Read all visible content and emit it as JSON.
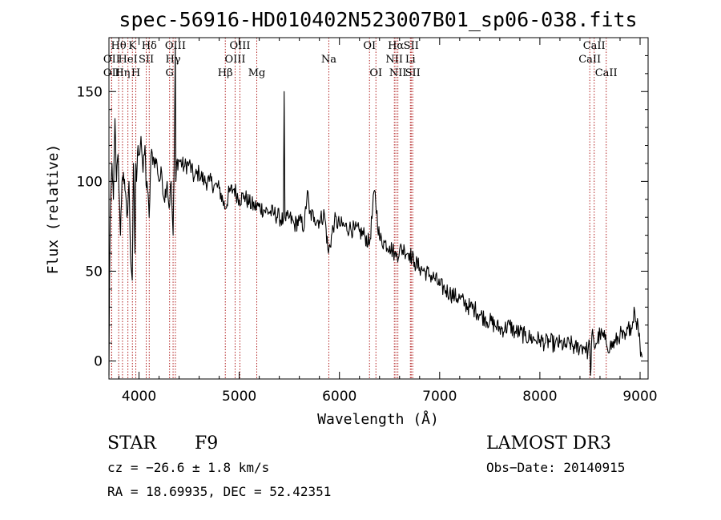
{
  "chart_data": {
    "type": "line",
    "title": "spec-56916-HD010402N523007B01_sp06-038.fits",
    "xlabel": "Wavelength (Å)",
    "ylabel": "Flux (relative)",
    "xlim": [
      3700,
      9080
    ],
    "ylim": [
      -10,
      180
    ],
    "xticks": [
      4000,
      5000,
      6000,
      7000,
      8000,
      9000
    ],
    "yticks": [
      0,
      50,
      100,
      150
    ],
    "series": [
      {
        "name": "spectrum",
        "x": [
          3700,
          3705,
          3712,
          3720,
          3730,
          3745,
          3760,
          3775,
          3790,
          3800,
          3815,
          3830,
          3845,
          3860,
          3880,
          3900,
          3915,
          3933,
          3945,
          3960,
          3968,
          3975,
          3990,
          4000,
          4020,
          4040,
          4060,
          4070,
          4080,
          4101,
          4120,
          4150,
          4180,
          4200,
          4226,
          4250,
          4280,
          4300,
          4320,
          4340,
          4350,
          4362,
          4368,
          4375,
          4400,
          4450,
          4500,
          4550,
          4600,
          4650,
          4700,
          4750,
          4800,
          4861,
          4900,
          4950,
          5000,
          5050,
          5100,
          5150,
          5200,
          5250,
          5300,
          5350,
          5400,
          5440,
          5448,
          5456,
          5464,
          5500,
          5550,
          5600,
          5650,
          5680,
          5700,
          5750,
          5800,
          5850,
          5890,
          5950,
          6000,
          6050,
          6100,
          6150,
          6200,
          6250,
          6300,
          6350,
          6400,
          6450,
          6500,
          6550,
          6563,
          6600,
          6650,
          6700,
          6750,
          6800,
          6850,
          6900,
          6950,
          7000,
          7050,
          7100,
          7150,
          7200,
          7250,
          7300,
          7350,
          7400,
          7450,
          7500,
          7550,
          7600,
          7650,
          7700,
          7750,
          7800,
          7850,
          7900,
          7950,
          8000,
          8050,
          8100,
          8150,
          8200,
          8250,
          8300,
          8350,
          8400,
          8450,
          8480,
          8495,
          8500,
          8505,
          8520,
          8542,
          8560,
          8600,
          8650,
          8662,
          8700,
          8750,
          8800,
          8850,
          8900,
          8920,
          8940,
          8960,
          8980,
          9000,
          9010,
          9020
        ],
        "values": [
          -8,
          40,
          80,
          95,
          110,
          90,
          135,
          100,
          115,
          95,
          70,
          100,
          105,
          95,
          80,
          100,
          60,
          45,
          110,
          60,
          110,
          100,
          120,
          115,
          125,
          105,
          120,
          98,
          100,
          80,
          115,
          112,
          110,
          100,
          105,
          90,
          100,
          85,
          100,
          70,
          105,
          175,
          100,
          110,
          112,
          108,
          110,
          102,
          105,
          100,
          100,
          98,
          96,
          85,
          94,
          96,
          90,
          92,
          88,
          86,
          86,
          84,
          83,
          82,
          80,
          78,
          150,
          80,
          78,
          80,
          76,
          78,
          75,
          95,
          82,
          80,
          78,
          82,
          60,
          78,
          76,
          75,
          74,
          73,
          72,
          70,
          65,
          95,
          68,
          66,
          64,
          60,
          58,
          62,
          62,
          60,
          55,
          52,
          50,
          48,
          46,
          42,
          40,
          38,
          36,
          35,
          32,
          30,
          29,
          26,
          24,
          22,
          20,
          18,
          18,
          20,
          16,
          16,
          14,
          13,
          12,
          12,
          10,
          11,
          9,
          10,
          8,
          10,
          7,
          8,
          8,
          5,
          10,
          6,
          -8,
          15,
          8,
          10,
          15,
          12,
          10,
          8,
          10,
          15,
          12,
          20,
          18,
          30,
          22,
          20,
          8,
          5,
          2
        ]
      }
    ],
    "spectral_lines": [
      {
        "label": "OII",
        "x": 3727,
        "row": 2
      },
      {
        "label": "OII",
        "x": 3727,
        "row": 3
      },
      {
        "label": "Hθ",
        "x": 3797,
        "row": 1
      },
      {
        "label": "Hη",
        "x": 3835,
        "row": 3
      },
      {
        "label": "HeI",
        "x": 3889,
        "row": 2
      },
      {
        "label": "K",
        "x": 3934,
        "row": 1
      },
      {
        "label": "SII",
        "x": 4072,
        "row": 2
      },
      {
        "label": "H",
        "x": 3968,
        "row": 3
      },
      {
        "label": "Hδ",
        "x": 4102,
        "row": 1
      },
      {
        "label": "OIII",
        "x": 4363,
        "row": 1
      },
      {
        "label": "Hγ",
        "x": 4340,
        "row": 2
      },
      {
        "label": "G",
        "x": 4305,
        "row": 3
      },
      {
        "label": "Hβ",
        "x": 4861,
        "row": 3
      },
      {
        "label": "OIII",
        "x": 5007,
        "row": 1
      },
      {
        "label": "OIII",
        "x": 4959,
        "row": 2
      },
      {
        "label": "Mg",
        "x": 5175,
        "row": 3
      },
      {
        "label": "Na",
        "x": 5894,
        "row": 2
      },
      {
        "label": "OI",
        "x": 6300,
        "row": 1
      },
      {
        "label": "OI",
        "x": 6364,
        "row": 3
      },
      {
        "label": "Hα",
        "x": 6563,
        "row": 1
      },
      {
        "label": "NII",
        "x": 6548,
        "row": 2
      },
      {
        "label": "NII",
        "x": 6583,
        "row": 3
      },
      {
        "label": "SII",
        "x": 6716,
        "row": 1
      },
      {
        "label": "Li",
        "x": 6708,
        "row": 2
      },
      {
        "label": "SII",
        "x": 6731,
        "row": 3
      },
      {
        "label": "CaII",
        "x": 8542,
        "row": 1
      },
      {
        "label": "CaII",
        "x": 8498,
        "row": 2
      },
      {
        "label": "CaII",
        "x": 8662,
        "row": 3
      }
    ]
  },
  "info": {
    "object_class": "STAR",
    "subclass": "F9",
    "survey": "LAMOST DR3",
    "cz": "cz = −26.6 ± 1.8 km/s",
    "obs_date": "Obs−Date: 20140915",
    "coords": "RA =  18.69935, DEC =  52.42351"
  },
  "colors": {
    "spectrum": "#000000",
    "line_marker": "#b22222",
    "axis": "#000000"
  }
}
